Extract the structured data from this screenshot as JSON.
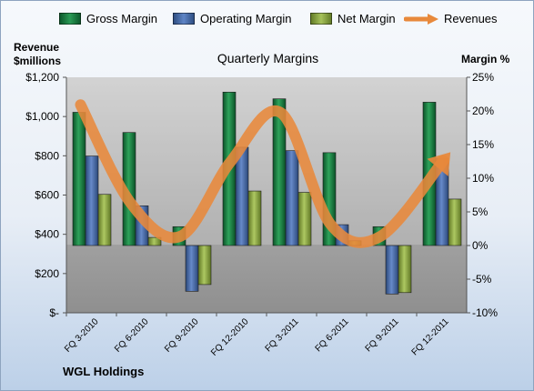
{
  "chart_data": {
    "type": "bar",
    "title": "Quarterly Margins",
    "categories": [
      "FQ 3-2010",
      "FQ 6-2010",
      "FQ 9-2010",
      "FQ 12-2010",
      "FQ 3-2011",
      "FQ 6-2011",
      "FQ 9-2011",
      "FQ 12-2011"
    ],
    "series": [
      {
        "name": "Gross Margin",
        "axis": "right",
        "values": [
          19.8,
          16.8,
          2.8,
          22.8,
          21.8,
          13.8,
          2.8,
          21.3
        ],
        "color": "#1e7e41"
      },
      {
        "name": "Operating Margin",
        "axis": "right",
        "values": [
          13.3,
          5.9,
          -6.8,
          14.6,
          14.1,
          3.1,
          -7.2,
          12.9
        ],
        "color": "#4a6fb0"
      },
      {
        "name": "Net Margin",
        "axis": "right",
        "values": [
          7.6,
          1.2,
          -5.8,
          8.1,
          7.9,
          0.7,
          -7.0,
          6.9
        ],
        "color": "#8fae45"
      },
      {
        "name": "Revenues",
        "axis": "left",
        "type": "line",
        "values": [
          1060,
          560,
          390,
          770,
          1020,
          450,
          390,
          720
        ],
        "color": "#e8893b"
      }
    ],
    "left_axis": {
      "label_line1": "Revenue",
      "label_line2": "$millions",
      "min": 0,
      "max": 1200,
      "step": 200,
      "tick_labels": [
        "$-",
        "$200",
        "$400",
        "$600",
        "$800",
        "$1,000",
        "$1,200"
      ]
    },
    "right_axis": {
      "label": "Margin %",
      "min": -10,
      "max": 25,
      "step": 5,
      "tick_labels": [
        "-10%",
        "-5%",
        "0%",
        "5%",
        "10%",
        "15%",
        "20%",
        "25%"
      ]
    },
    "legend_position": "top",
    "grid": false
  },
  "footer": "WGL Holdings"
}
